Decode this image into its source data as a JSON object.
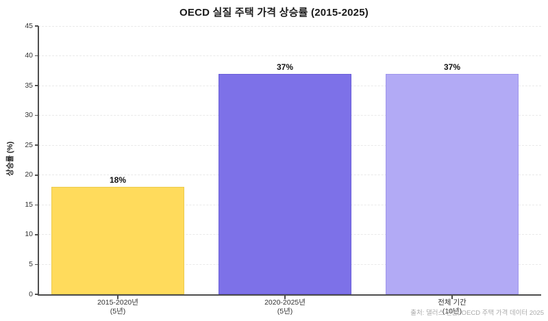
{
  "source_note": "출처: 댈러스 연준, OECD 주택 가격 데이터 2025",
  "chart_data": {
    "type": "bar",
    "title": "OECD 실질 주택 가격 상승률 (2015-2025)",
    "xlabel": "",
    "ylabel": "상승률 (%)",
    "categories": [
      "2015-2020년\n(5년)",
      "2020-2025년\n(5년)",
      "전체 기간\n(10년)"
    ],
    "values": [
      18,
      37,
      37
    ],
    "value_labels": [
      "18%",
      "37%",
      "37%"
    ],
    "colors": [
      "#FFDB5C",
      "#7D71E8",
      "#B2AAF5"
    ],
    "border_colors": [
      "#ecca4d",
      "#6a5ed8",
      "#9e94ec"
    ],
    "ylim": [
      0,
      45
    ],
    "yticks": [
      0,
      5,
      10,
      15,
      20,
      25,
      30,
      35,
      40,
      45
    ],
    "grid": "horizontal-dashed",
    "legend": "none"
  }
}
